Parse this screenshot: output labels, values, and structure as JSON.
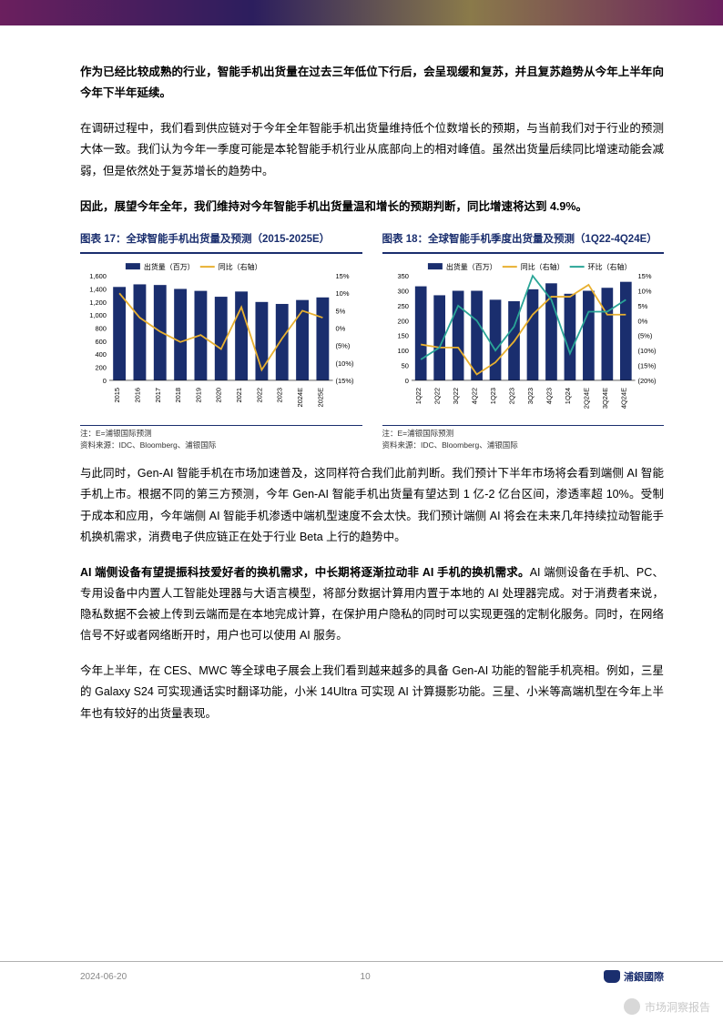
{
  "paragraphs": {
    "p1": "作为已经比较成熟的行业，智能手机出货量在过去三年低位下行后，会呈现缓和复苏，并且复苏趋势从今年上半年向今年下半年延续。",
    "p2": "在调研过程中，我们看到供应链对于今年全年智能手机出货量维持低个位数增长的预期，与当前我们对于行业的预测大体一致。我们认为今年一季度可能是本轮智能手机行业从底部向上的相对峰值。虽然出货量后续同比增速动能会减弱，但是依然处于复苏增长的趋势中。",
    "p3": "因此，展望今年全年，我们维持对今年智能手机出货量温和增长的预期判断，同比增速将达到 4.9%。",
    "p4": "与此同时，Gen-AI 智能手机在市场加速普及，这同样符合我们此前判断。我们预计下半年市场将会看到端侧 AI 智能手机上市。根据不同的第三方预测，今年 Gen-AI 智能手机出货量有望达到 1 亿-2 亿台区间，渗透率超 10%。受制于成本和应用，今年端侧 AI 智能手机渗透中端机型速度不会太快。我们预计端侧 AI 将会在未来几年持续拉动智能手机换机需求，消费电子供应链正在处于行业 Beta 上行的趋势中。",
    "p5a": "AI 端侧设备有望提振科技爱好者的换机需求，中长期将逐渐拉动非 AI 手机的换机需求。",
    "p5b": "AI 端侧设备在手机、PC、专用设备中内置人工智能处理器与大语言模型，将部分数据计算用内置于本地的 AI 处理器完成。对于消费者来说，隐私数据不会被上传到云端而是在本地完成计算，在保护用户隐私的同时可以实现更强的定制化服务。同时，在网络信号不好或者网络断开时，用户也可以使用 AI 服务。",
    "p6": "今年上半年，在 CES、MWC 等全球电子展会上我们看到越来越多的具备 Gen-AI 功能的智能手机亮相。例如，三星的 Galaxy S24 可实现通话实时翻译功能，小米 14Ultra 可实现 AI 计算摄影功能。三星、小米等高端机型在今年上半年也有较好的出货量表现。"
  },
  "chart17": {
    "title_prefix": "图表 17：",
    "title_text": "全球智能手机出货量及预测（2015-2025E）",
    "legend_bar": "出货量（百万）",
    "legend_line": "同比（右轴）",
    "note1": "注：E=浦银国际预测",
    "note2": "资料来源：IDC、Bloomberg、浦银国际",
    "categories": [
      "2015",
      "2016",
      "2017",
      "2018",
      "2019",
      "2020",
      "2021",
      "2022",
      "2023",
      "2024E",
      "2025E"
    ],
    "bar_values": [
      1430,
      1470,
      1460,
      1400,
      1370,
      1280,
      1360,
      1200,
      1170,
      1230,
      1270
    ],
    "line_values": [
      10,
      3,
      -1,
      -4,
      -2,
      -6,
      6,
      -12,
      -3,
      5,
      3
    ],
    "y_left": {
      "min": 0,
      "max": 1600,
      "step": 200
    },
    "y_right": {
      "min": -15,
      "max": 15,
      "step": 5,
      "labels": [
        "15%",
        "10%",
        "5%",
        "0%",
        "(5%)",
        "(10%)",
        "(15%)"
      ]
    },
    "bar_color": "#1a2e6e",
    "line_color": "#e8b030",
    "axis_color": "#666666",
    "grid_color": "#dddddd",
    "bg": "#ffffff"
  },
  "chart18": {
    "title_prefix": "图表 18：",
    "title_text": "全球智能手机季度出货量及预测（1Q22-4Q24E）",
    "legend_bar": "出货量（百万）",
    "legend_line1": "同比（右轴）",
    "legend_line2": "环比（右轴）",
    "note1": "注：E=浦银国际预测",
    "note2": "资料来源：IDC、Bloomberg、浦银国际",
    "categories": [
      "1Q22",
      "2Q22",
      "3Q22",
      "4Q22",
      "1Q23",
      "2Q23",
      "3Q23",
      "4Q23",
      "1Q24",
      "2Q24E",
      "3Q24E",
      "4Q24E"
    ],
    "bar_values": [
      315,
      285,
      300,
      300,
      270,
      265,
      305,
      325,
      290,
      300,
      310,
      330
    ],
    "line1_values": [
      -8,
      -9,
      -9,
      -18,
      -14,
      -7,
      2,
      8,
      8,
      12,
      2,
      2
    ],
    "line2_values": [
      -13,
      -9,
      5,
      0,
      -10,
      -2,
      15,
      7,
      -11,
      3,
      3,
      7
    ],
    "y_left": {
      "min": 0,
      "max": 350,
      "step": 50
    },
    "y_right": {
      "min": -20,
      "max": 15,
      "step": 5,
      "labels": [
        "15%",
        "10%",
        "5%",
        "0%",
        "(5%)",
        "(10%)",
        "(15%)",
        "(20%)"
      ]
    },
    "bar_color": "#1a2e6e",
    "line1_color": "#e8b030",
    "line2_color": "#2aa597",
    "axis_color": "#666666",
    "bg": "#ffffff"
  },
  "footer": {
    "date": "2024-06-20",
    "page": "10",
    "company": "浦銀國際"
  },
  "watermark": "市场洞察报告"
}
